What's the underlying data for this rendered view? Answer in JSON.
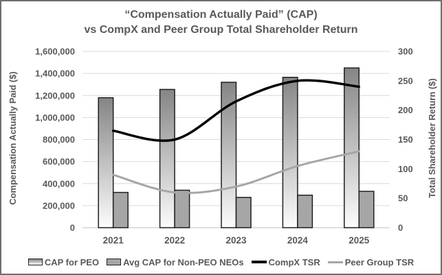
{
  "chart_data": {
    "type": "combo-bar-line",
    "title_line1": "“Compensation Actually Paid” (CAP)",
    "title_line2": "vs CompX and Peer Group Total Shareholder Return",
    "categories": [
      "2021",
      "2022",
      "2023",
      "2024",
      "2025"
    ],
    "series": [
      {
        "name": "CAP for PEO",
        "type": "bar",
        "axis": "left",
        "values": [
          1180000,
          1255000,
          1320000,
          1365000,
          1450000
        ],
        "fill": "gradient",
        "fill_top": "#858585",
        "fill_bottom": "#fcfcfc",
        "border": "#1f1f1f"
      },
      {
        "name": "Avg CAP for Non-PEO NEOs",
        "type": "bar",
        "axis": "left",
        "values": [
          320000,
          340000,
          275000,
          295000,
          330000
        ],
        "fill": "solid",
        "fill_color": "#a6a6a6",
        "border": "#1f1f1f"
      },
      {
        "name": "CompX TSR",
        "type": "line",
        "axis": "right",
        "values": [
          165,
          150,
          215,
          250,
          240
        ],
        "color": "#000000",
        "stroke_width": 3.5
      },
      {
        "name": "Peer Group TSR",
        "type": "line",
        "axis": "right",
        "values": [
          90,
          60,
          70,
          105,
          130
        ],
        "color": "#a6a6a6",
        "stroke_width": 3
      }
    ],
    "left_axis": {
      "label": "Compensation Actually Paid ($)",
      "min": 0,
      "max": 1600000,
      "step": 200000,
      "tick_labels": [
        "0",
        "200,000",
        "400,000",
        "600,000",
        "800,000",
        "1,000,000",
        "1,200,000",
        "1,400,000",
        "1,600,000"
      ]
    },
    "right_axis": {
      "label": "Total Shareholder Return ($)",
      "min": 0,
      "max": 300,
      "step": 50,
      "tick_labels": [
        "0",
        "50",
        "100",
        "150",
        "200",
        "250",
        "300"
      ]
    },
    "grid": true,
    "legend_position": "bottom",
    "colors": {
      "text": "#595959",
      "gridline": "#d9d9d9",
      "axis_line": "#bfbfbf",
      "frame_border": "#6e6e6e",
      "background": "#ffffff"
    }
  }
}
